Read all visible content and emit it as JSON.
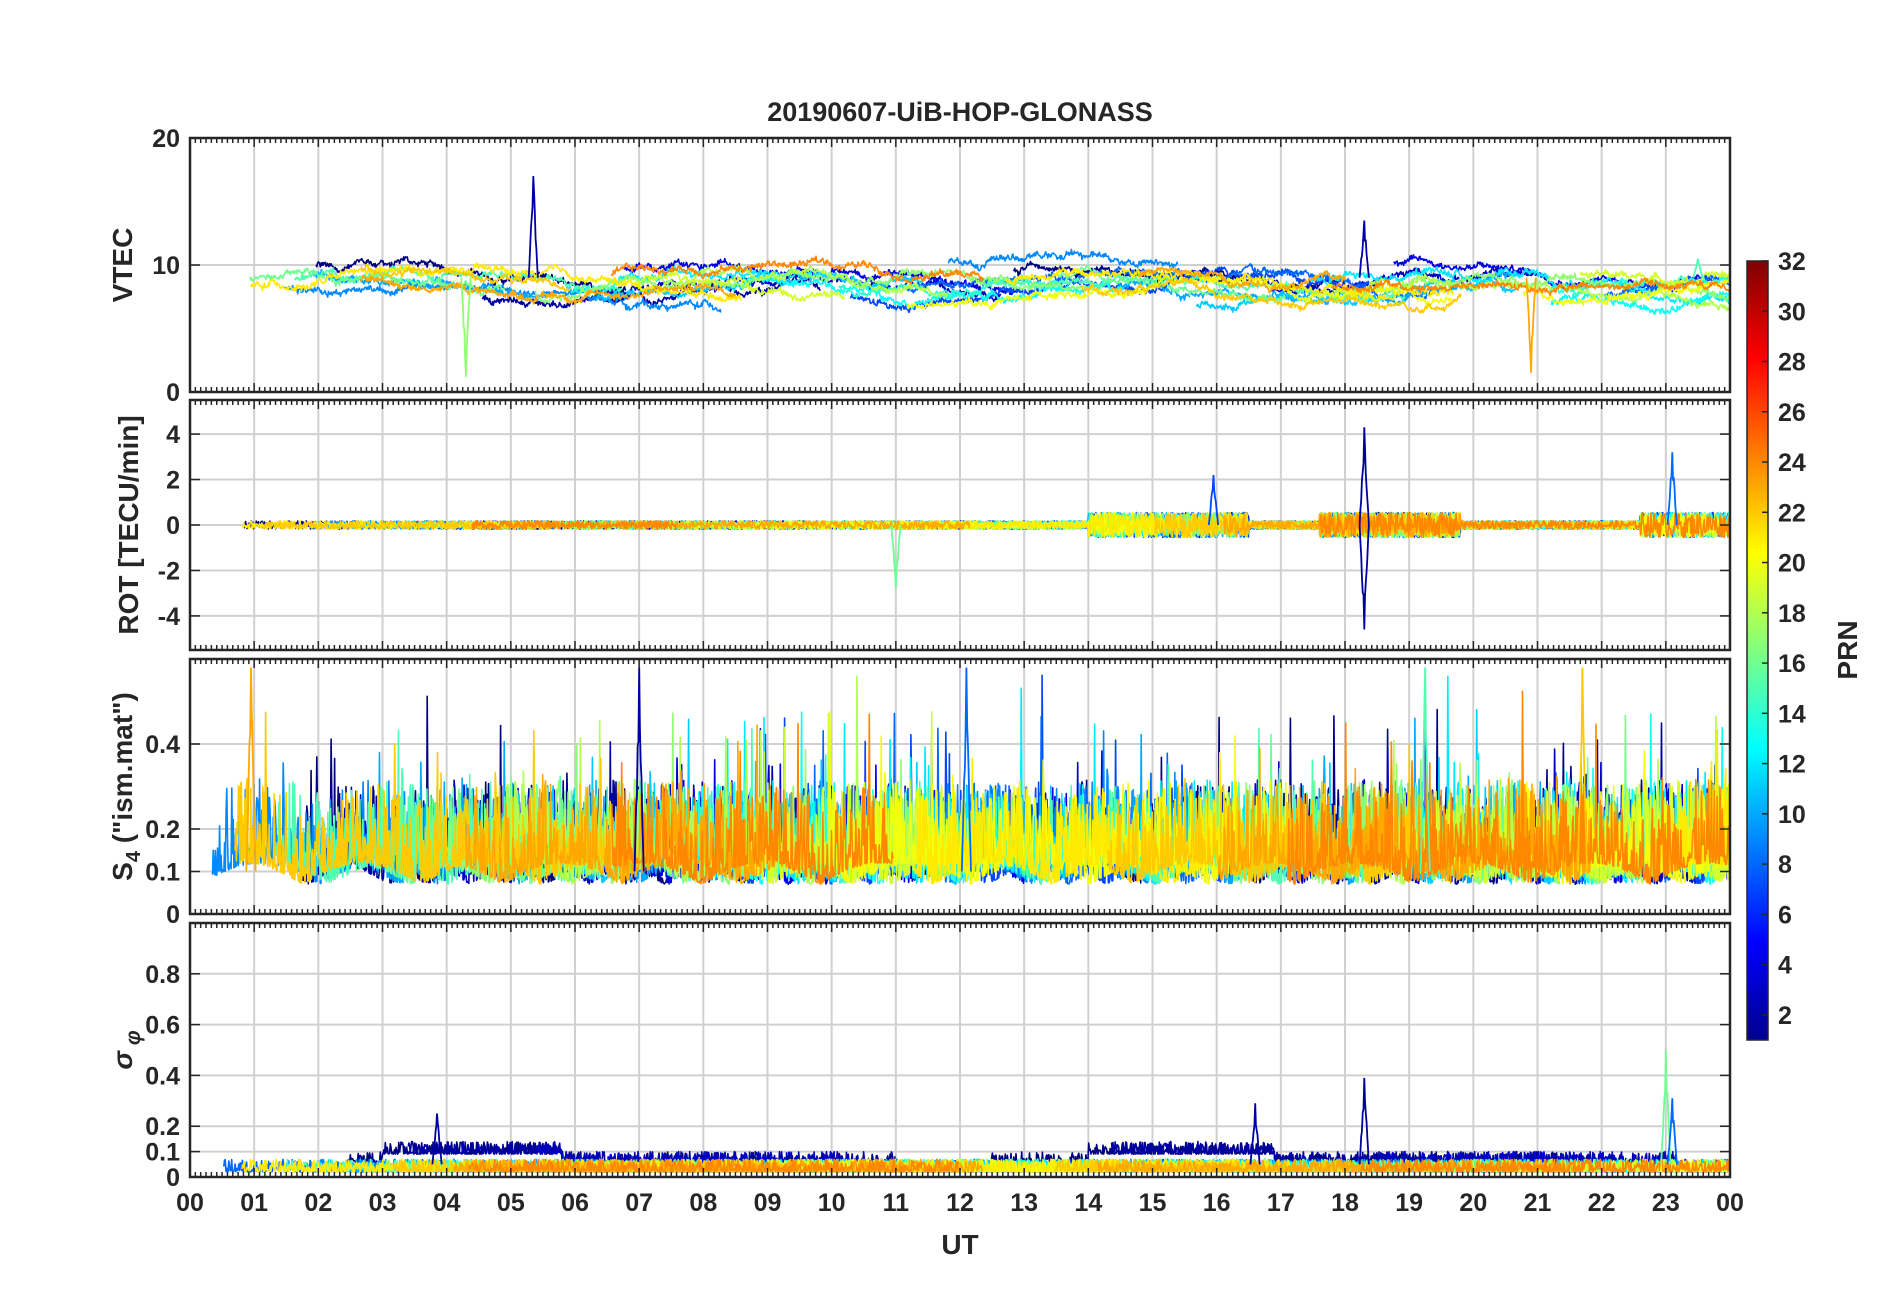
{
  "chart_data": {
    "type": "line",
    "title": "20190607-UiB-HOP-GLONASS",
    "xlabel": "UT",
    "xlim": [
      0,
      24
    ],
    "x_tick_labels": [
      "00",
      "01",
      "02",
      "03",
      "04",
      "05",
      "06",
      "07",
      "08",
      "09",
      "10",
      "11",
      "12",
      "13",
      "14",
      "15",
      "16",
      "17",
      "18",
      "19",
      "20",
      "21",
      "22",
      "23",
      "00"
    ],
    "grid": true,
    "colormap": "jet",
    "colorbar": {
      "label": "PRN",
      "range": [
        1,
        32
      ],
      "tick_labels": [
        "2",
        "4",
        "6",
        "8",
        "10",
        "12",
        "14",
        "16",
        "18",
        "20",
        "22",
        "24",
        "26",
        "28",
        "30",
        "32"
      ],
      "placement": "right"
    },
    "series_prn": [
      1,
      2,
      3,
      4,
      7,
      8,
      9,
      10,
      11,
      12,
      13,
      14,
      15,
      16,
      17,
      18,
      19,
      20,
      21,
      22,
      23,
      24
    ],
    "panels": [
      {
        "ylabel": "VTEC",
        "ylim": [
          0,
          20
        ],
        "y_tick_labels": [
          "0",
          "10",
          "20"
        ],
        "y_ticks": [
          0,
          10,
          20
        ],
        "events": [
          {
            "x": 5.35,
            "y": 17.0,
            "prn": 2
          },
          {
            "x": 18.3,
            "y": 13.5,
            "prn": 2
          },
          {
            "x": 4.3,
            "y": 1.2,
            "prn": 17
          },
          {
            "x": 20.9,
            "y": 1.5,
            "prn": 23
          },
          {
            "x": 23.5,
            "y": 10.5,
            "prn": 15
          }
        ]
      },
      {
        "ylabel": "ROT [TECU/min]",
        "ylim": [
          -5.5,
          5.5
        ],
        "y_tick_labels": [
          "-4",
          "-2",
          "0",
          "2",
          "4"
        ],
        "y_ticks": [
          -4,
          -2,
          0,
          2,
          4
        ],
        "events": [
          {
            "x": 18.3,
            "y": 4.3,
            "prn": 2
          },
          {
            "x": 18.3,
            "y": -4.6,
            "prn": 2
          },
          {
            "x": 11.0,
            "y": -2.8,
            "prn": 16
          },
          {
            "x": 15.95,
            "y": 2.2,
            "prn": 7
          },
          {
            "x": 23.1,
            "y": 3.2,
            "prn": 8
          }
        ]
      },
      {
        "ylabel": "S4 (\"ism.mat\")",
        "ylabel_main": "S",
        "ylabel_sub": "4",
        "ylabel_rest": " (\"ism.mat\")",
        "ylim": [
          0,
          0.6
        ],
        "y_tick_labels": [
          "0",
          "0.1",
          "0.2",
          "0.4"
        ],
        "y_ticks": [
          0,
          0.1,
          0.2,
          0.4
        ],
        "events": [
          {
            "x": 7.0,
            "y": 0.58,
            "prn": 2
          },
          {
            "x": 0.95,
            "y": 0.58,
            "prn": 23
          },
          {
            "x": 12.1,
            "y": 0.58,
            "prn": 8
          },
          {
            "x": 21.7,
            "y": 0.58,
            "prn": 22
          },
          {
            "x": 19.25,
            "y": 0.58,
            "prn": 15
          }
        ]
      },
      {
        "ylabel": "σ φ",
        "ylabel_main": "σ",
        "ylabel_sub": "φ",
        "ylim": [
          0,
          1
        ],
        "y_tick_labels": [
          "0",
          "0.1",
          "0.2",
          "0.4",
          "0.6",
          "0.8"
        ],
        "y_ticks": [
          0,
          0.1,
          0.2,
          0.4,
          0.6,
          0.8
        ],
        "events": [
          {
            "x": 23.0,
            "y": 0.5,
            "prn": 16
          },
          {
            "x": 18.3,
            "y": 0.39,
            "prn": 2
          },
          {
            "x": 16.6,
            "y": 0.29,
            "prn": 2
          },
          {
            "x": 23.1,
            "y": 0.31,
            "prn": 8
          },
          {
            "x": 3.85,
            "y": 0.25,
            "prn": 2
          }
        ]
      }
    ]
  }
}
